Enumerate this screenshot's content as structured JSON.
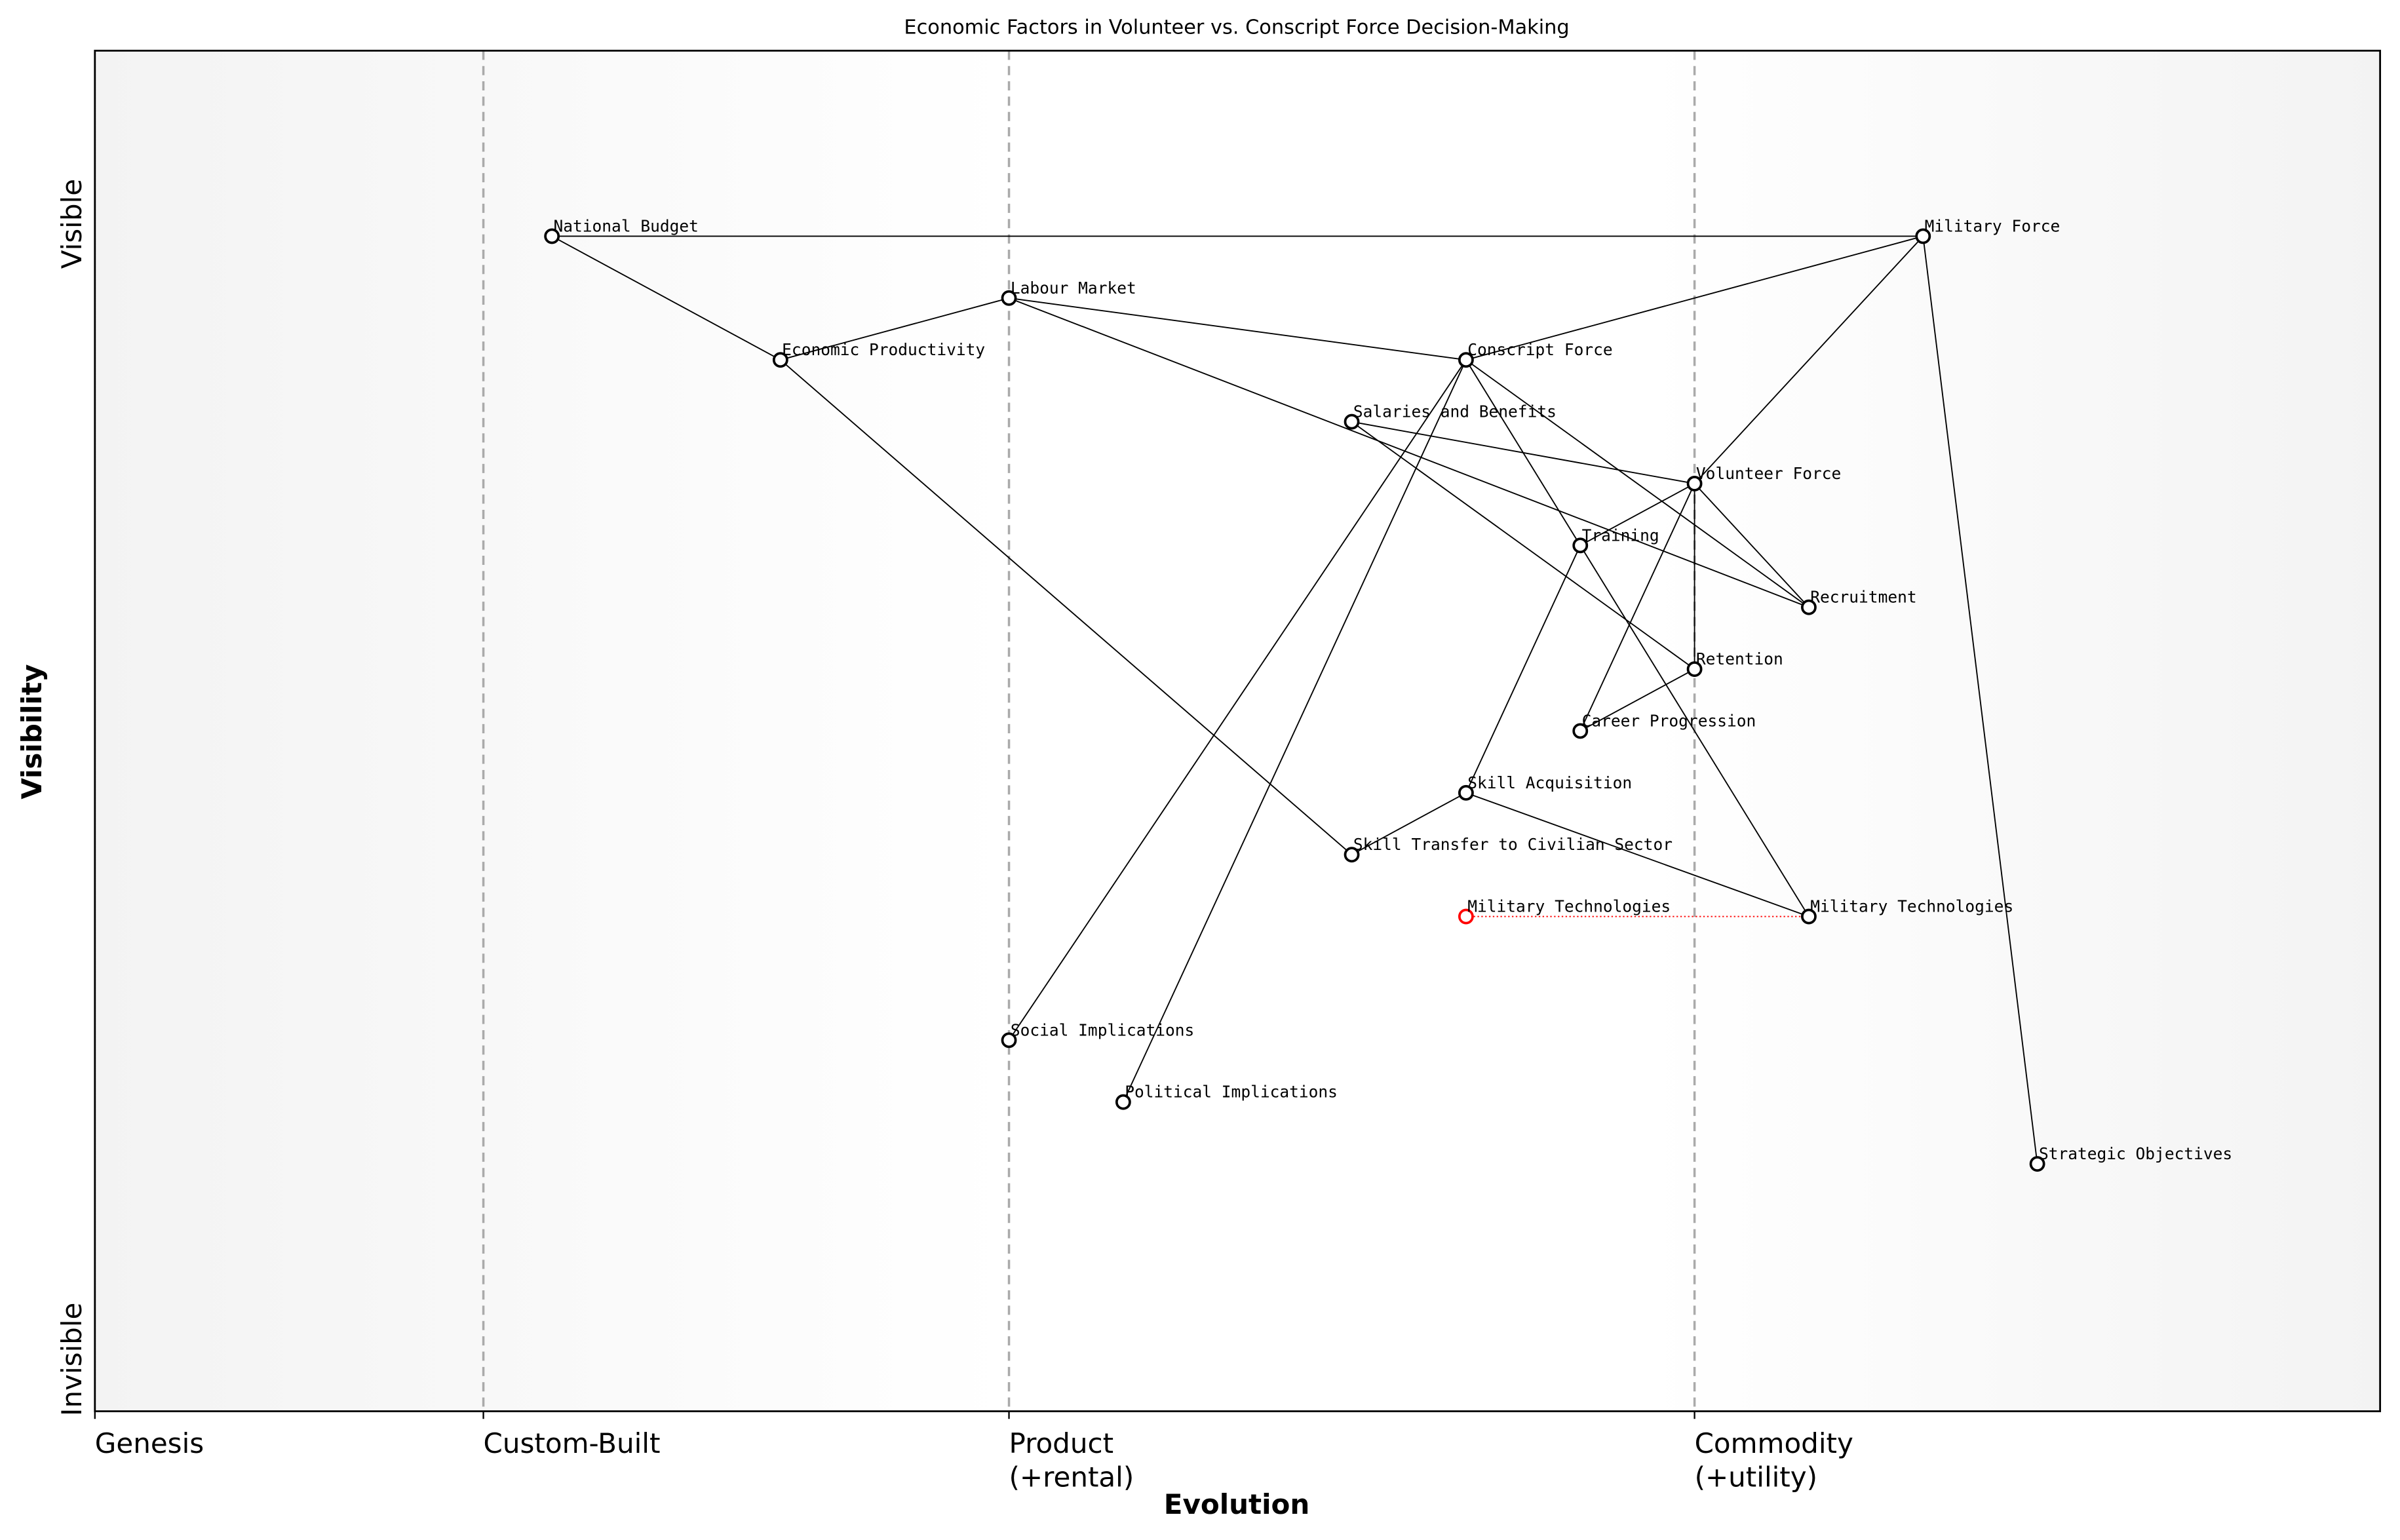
{
  "chart_data": {
    "type": "wardley",
    "title": "Economic Factors in Volunteer vs. Conscript Force Decision-Making",
    "x_label": "Evolution",
    "y_label": "Visibility",
    "xlim": [
      0,
      1
    ],
    "ylim": [
      0,
      22
    ],
    "xticks": [
      {
        "value": 0,
        "label": "Genesis"
      },
      {
        "value": 0.17,
        "label": "Custom-Built"
      },
      {
        "value": 0.4,
        "label": "Product\n(+rental)"
      },
      {
        "value": 0.7,
        "label": "Commodity\n(+utility)"
      }
    ],
    "yticks": [
      {
        "value": 0.84,
        "label": "Invisible"
      },
      {
        "value": 19.2,
        "label": "Visible"
      }
    ],
    "grid": true,
    "node_color": "#000000",
    "nodes": [
      {
        "name": "National Budget",
        "x": 0.2,
        "y": 19
      },
      {
        "name": "Economic Productivity",
        "x": 0.3,
        "y": 17
      },
      {
        "name": "Labour Market",
        "x": 0.4,
        "y": 18
      },
      {
        "name": "Conscript Force",
        "x": 0.6,
        "y": 17
      },
      {
        "name": "Salaries and Benefits",
        "x": 0.55,
        "y": 16
      },
      {
        "name": "Volunteer Force",
        "x": 0.7,
        "y": 15
      },
      {
        "name": "Training",
        "x": 0.65,
        "y": 14
      },
      {
        "name": "Recruitment",
        "x": 0.75,
        "y": 13
      },
      {
        "name": "Retention",
        "x": 0.7,
        "y": 12
      },
      {
        "name": "Career Progression",
        "x": 0.65,
        "y": 11
      },
      {
        "name": "Skill Acquisition",
        "x": 0.6,
        "y": 10
      },
      {
        "name": "Skill Transfer to Civilian Sector",
        "x": 0.55,
        "y": 9
      },
      {
        "name": "Military Technologies",
        "x": 0.6,
        "y": 8,
        "color": "#ff0000"
      },
      {
        "name": "Military Technologies",
        "x": 0.75,
        "y": 8
      },
      {
        "name": "Social Implications",
        "x": 0.4,
        "y": 6
      },
      {
        "name": "Political Implications",
        "x": 0.45,
        "y": 5
      },
      {
        "name": "Strategic Objectives",
        "x": 0.85,
        "y": 4
      },
      {
        "name": "Military Force",
        "x": 0.8,
        "y": 19
      }
    ],
    "links": [
      [
        0,
        17
      ],
      [
        0,
        1
      ],
      [
        1,
        2
      ],
      [
        1,
        11
      ],
      [
        2,
        3
      ],
      [
        2,
        7
      ],
      [
        17,
        3
      ],
      [
        17,
        5
      ],
      [
        17,
        16
      ],
      [
        3,
        14
      ],
      [
        3,
        15
      ],
      [
        3,
        7
      ],
      [
        3,
        13
      ],
      [
        4,
        5
      ],
      [
        4,
        8
      ],
      [
        5,
        6
      ],
      [
        5,
        7
      ],
      [
        5,
        8
      ],
      [
        5,
        9
      ],
      [
        9,
        8
      ],
      [
        6,
        10
      ],
      [
        10,
        11
      ],
      [
        10,
        13
      ]
    ],
    "evolve": [
      [
        12,
        13
      ]
    ],
    "evolve_color": "#ff0000"
  }
}
